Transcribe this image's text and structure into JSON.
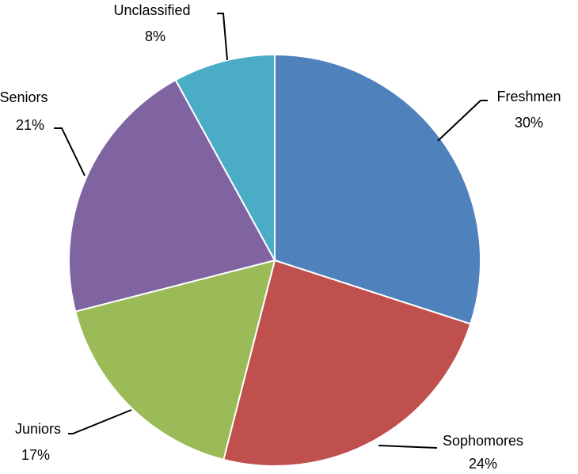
{
  "chart_data": {
    "type": "pie",
    "categories": [
      "Freshmen",
      "Sophomores",
      "Juniors",
      "Seniors",
      "Unclassified"
    ],
    "values": [
      30,
      24,
      17,
      21,
      8
    ],
    "value_labels": [
      "30%",
      "24%",
      "17%",
      "21%",
      "8%"
    ],
    "colors": [
      "#4f81bd",
      "#c0504d",
      "#9bbb59",
      "#8064a2",
      "#4bacc6"
    ]
  }
}
